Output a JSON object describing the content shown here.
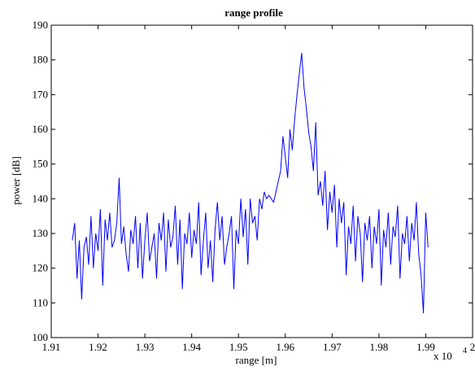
{
  "chart_data": {
    "type": "line",
    "title": "range profile",
    "xlabel": "range [m]",
    "ylabel": "power [dB]",
    "x_exponent_label": "x 10",
    "x_exponent_power": "4",
    "xlim": [
      19100,
      20000
    ],
    "ylim": [
      100,
      190
    ],
    "xticks": [
      19100,
      19200,
      19300,
      19400,
      19500,
      19600,
      19700,
      19800,
      19900,
      20000
    ],
    "xtick_labels": [
      "1.91",
      "1.92",
      "1.93",
      "1.94",
      "1.95",
      "1.96",
      "1.97",
      "1.98",
      "1.99",
      "2"
    ],
    "yticks": [
      100,
      110,
      120,
      130,
      140,
      150,
      160,
      170,
      180,
      190
    ],
    "ytick_labels": [
      "100",
      "110",
      "120",
      "130",
      "140",
      "150",
      "160",
      "170",
      "180",
      "190"
    ],
    "grid": false,
    "line_color": "#0000ff",
    "series": [
      {
        "x": [
          19145,
          19150,
          19155,
          19160,
          19165,
          19170,
          19175,
          19180,
          19185,
          19190,
          19195,
          19200,
          19205,
          19210,
          19215,
          19220,
          19225,
          19230,
          19235,
          19240,
          19245,
          19250,
          19255,
          19260,
          19265,
          19270,
          19275,
          19280,
          19285,
          19290,
          19295,
          19300,
          19305,
          19310,
          19315,
          19320,
          19325,
          19330,
          19335,
          19340,
          19345,
          19350,
          19355,
          19360,
          19365,
          19370,
          19375,
          19380,
          19385,
          19390,
          19395,
          19400,
          19405,
          19410,
          19415,
          19420,
          19425,
          19430,
          19435,
          19440,
          19445,
          19450,
          19455,
          19460,
          19465,
          19470,
          19475,
          19480,
          19485,
          19490,
          19495,
          19500,
          19505,
          19510,
          19515,
          19520,
          19525,
          19530,
          19535,
          19540,
          19545,
          19550,
          19555,
          19560,
          19565,
          19570,
          19575,
          19580,
          19585,
          19590,
          19595,
          19600,
          19605,
          19610,
          19615,
          19620,
          19625,
          19630,
          19635,
          19640,
          19645,
          19650,
          19655,
          19660,
          19665,
          19670,
          19675,
          19680,
          19685,
          19690,
          19695,
          19700,
          19705,
          19710,
          19715,
          19720,
          19725,
          19730,
          19735,
          19740,
          19745,
          19750,
          19755,
          19760,
          19765,
          19770,
          19775,
          19780,
          19785,
          19790,
          19795,
          19800,
          19805,
          19810,
          19815,
          19820,
          19825,
          19830,
          19835,
          19840,
          19845,
          19850,
          19855,
          19860,
          19865,
          19870,
          19875,
          19880,
          19885,
          19890,
          19895,
          19900,
          19905
        ],
        "y": [
          128,
          133,
          117,
          128,
          111,
          126,
          129,
          121,
          135,
          120,
          130,
          125,
          137,
          115,
          134,
          128,
          136,
          126,
          128,
          133,
          146,
          127,
          132,
          124,
          119,
          131,
          127,
          135,
          120,
          133,
          117,
          128,
          136,
          122,
          126,
          130,
          117,
          133,
          128,
          136,
          119,
          134,
          126,
          129,
          138,
          121,
          134,
          114,
          130,
          127,
          136,
          123,
          131,
          127,
          139,
          118,
          128,
          136,
          120,
          128,
          116,
          131,
          139,
          128,
          135,
          121,
          126,
          130,
          135,
          114,
          131,
          127,
          140,
          129,
          137,
          121,
          140,
          133,
          135,
          128,
          140,
          137,
          142,
          140,
          141,
          140,
          139,
          142,
          145,
          148,
          158,
          152,
          146,
          160,
          154,
          163,
          170,
          176,
          182,
          172,
          166,
          159,
          155,
          148,
          162,
          141,
          145,
          138,
          148,
          131,
          142,
          136,
          144,
          126,
          140,
          133,
          139,
          118,
          132,
          127,
          138,
          122,
          135,
          130,
          116,
          133,
          128,
          135,
          120,
          132,
          127,
          137,
          115,
          131,
          126,
          136,
          121,
          132,
          129,
          138,
          117,
          130,
          127,
          135,
          122,
          133,
          128,
          139,
          124,
          118,
          107,
          136,
          126
        ]
      }
    ]
  }
}
